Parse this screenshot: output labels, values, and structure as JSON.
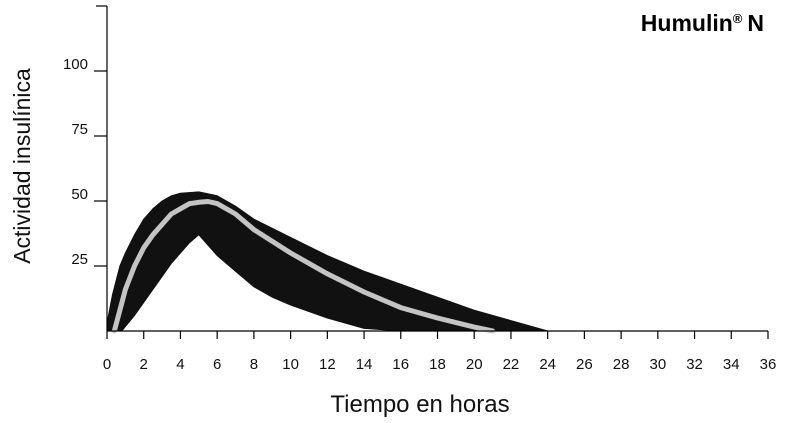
{
  "chart_data": {
    "type": "area",
    "title": "Humulin",
    "title_mark": "®",
    "title_suffix": "N",
    "xlabel": "Tiempo en horas",
    "ylabel": "Actividad insulínica",
    "xlim": [
      0,
      36
    ],
    "ylim": [
      0,
      125
    ],
    "x_ticks": [
      0,
      2,
      4,
      6,
      8,
      10,
      12,
      14,
      16,
      18,
      20,
      22,
      24,
      26,
      28,
      30,
      32,
      34,
      36
    ],
    "y_ticks": [
      25,
      50,
      75,
      100
    ],
    "grid": false,
    "colors": {
      "band": "#111111",
      "mean": "#c4c4c4",
      "axis": "#000000"
    },
    "series": [
      {
        "role": "upper-bound",
        "x": [
          0,
          0.3,
          0.7,
          1,
          1.5,
          2,
          2.5,
          3,
          3.5,
          4,
          5,
          6,
          7,
          8,
          10,
          12,
          14,
          16,
          18,
          20,
          22,
          24
        ],
        "y": [
          3,
          14,
          25,
          30,
          37,
          43,
          47,
          50,
          52,
          53,
          53.5,
          52,
          48,
          43,
          36,
          29,
          23,
          18,
          13,
          8,
          4,
          0
        ]
      },
      {
        "role": "mean",
        "x": [
          0.4,
          0.7,
          1,
          1.5,
          2,
          2.5,
          3,
          3.5,
          4,
          4.5,
          5,
          5.5,
          6,
          7,
          8,
          10,
          12,
          14,
          16,
          18,
          20,
          21
        ],
        "y": [
          0,
          8,
          16,
          25,
          32,
          37,
          41,
          45,
          47,
          49,
          49.5,
          49.8,
          49,
          45,
          39,
          30,
          22,
          15,
          9,
          5,
          1.5,
          0
        ]
      },
      {
        "role": "lower-bound",
        "x": [
          0.8,
          1.5,
          2,
          2.5,
          3,
          3.5,
          4,
          4.5,
          5,
          5.5,
          6,
          7,
          8,
          9,
          10,
          12,
          14,
          16,
          18,
          20,
          22,
          24
        ],
        "y": [
          0,
          6,
          11,
          16,
          21,
          26,
          30,
          34,
          37,
          33,
          29,
          23,
          17,
          13,
          10,
          5,
          1,
          0,
          0,
          0,
          0,
          0
        ]
      }
    ]
  }
}
